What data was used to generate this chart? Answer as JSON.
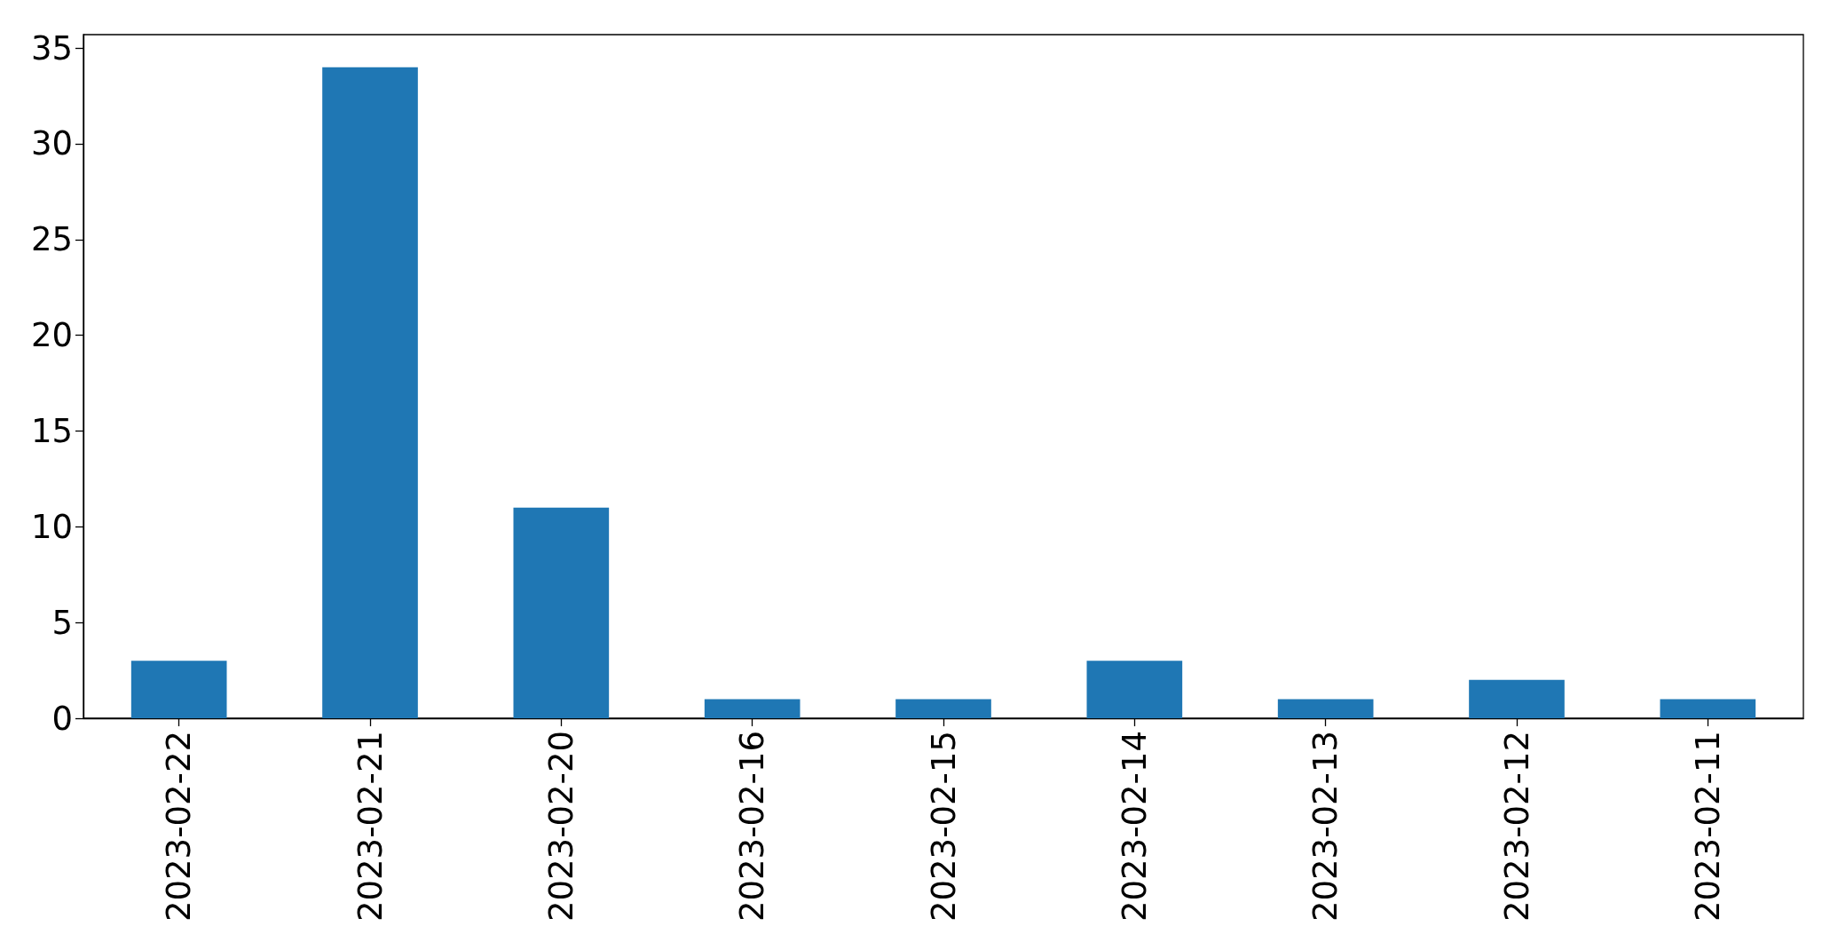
{
  "chart_data": {
    "type": "bar",
    "categories": [
      "2023-02-22",
      "2023-02-21",
      "2023-02-20",
      "2023-02-16",
      "2023-02-15",
      "2023-02-14",
      "2023-02-13",
      "2023-02-12",
      "2023-02-11"
    ],
    "values": [
      3,
      34,
      11,
      1,
      1,
      3,
      1,
      2,
      1
    ],
    "color": "#1f77b4",
    "ylim": [
      0,
      35.7
    ],
    "yticks": [
      0,
      5,
      10,
      15,
      20,
      25,
      30,
      35
    ],
    "grid": false
  }
}
